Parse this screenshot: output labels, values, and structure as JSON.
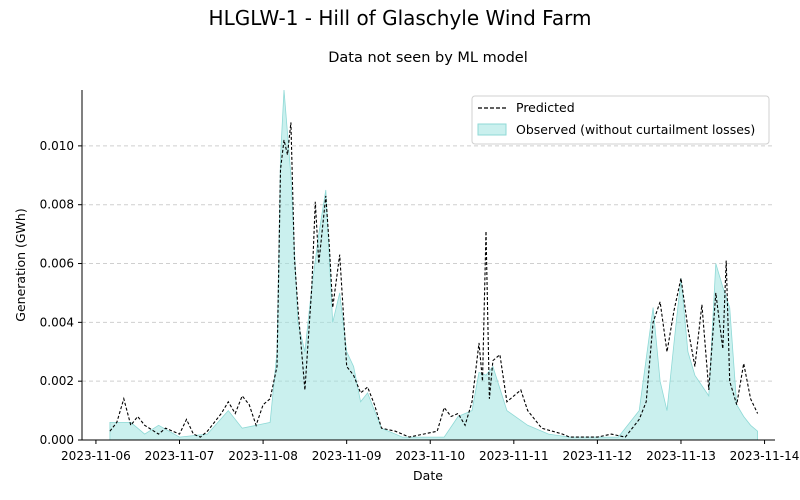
{
  "chart_data": {
    "type": "line",
    "title": "HLGLW-1 - Hill of Glaschyle Wind Farm",
    "subtitle": "Data not seen by ML model",
    "xlabel": "Date",
    "ylabel": "Generation (GWh)",
    "xlim": [
      "2023-11-05 20:00",
      "2023-11-14 03:00"
    ],
    "ylim": [
      0,
      0.0119
    ],
    "x_ticks": [
      "2023-11-06",
      "2023-11-07",
      "2023-11-08",
      "2023-11-09",
      "2023-11-10",
      "2023-11-11",
      "2023-11-12",
      "2023-11-13",
      "2023-11-14"
    ],
    "y_ticks": [
      0.0,
      0.002,
      0.004,
      0.006,
      0.008,
      0.01
    ],
    "y_tick_labels": [
      "0.000",
      "0.002",
      "0.004",
      "0.006",
      "0.008",
      "0.010"
    ],
    "grid": "y",
    "legend": "top-right",
    "series": [
      {
        "name": "Predicted",
        "type": "line",
        "style": "dashed",
        "color": "#000000",
        "points": [
          [
            "2023-11-06 04:00",
            0.0003
          ],
          [
            "2023-11-06 06:00",
            0.0006
          ],
          [
            "2023-11-06 08:00",
            0.0014
          ],
          [
            "2023-11-06 10:00",
            0.0005
          ],
          [
            "2023-11-06 12:00",
            0.0008
          ],
          [
            "2023-11-06 14:00",
            0.0005
          ],
          [
            "2023-11-06 18:00",
            0.0002
          ],
          [
            "2023-11-06 20:00",
            0.0004
          ],
          [
            "2023-11-07 00:00",
            0.0002
          ],
          [
            "2023-11-07 02:00",
            0.0007
          ],
          [
            "2023-11-07 04:00",
            0.0002
          ],
          [
            "2023-11-07 06:00",
            0.0001
          ],
          [
            "2023-11-07 08:00",
            0.0003
          ],
          [
            "2023-11-07 12:00",
            0.0009
          ],
          [
            "2023-11-07 14:00",
            0.0013
          ],
          [
            "2023-11-07 16:00",
            0.0009
          ],
          [
            "2023-11-07 18:00",
            0.0015
          ],
          [
            "2023-11-07 20:00",
            0.0012
          ],
          [
            "2023-11-07 22:00",
            0.0005
          ],
          [
            "2023-11-08 00:00",
            0.0012
          ],
          [
            "2023-11-08 02:00",
            0.0014
          ],
          [
            "2023-11-08 04:00",
            0.0025
          ],
          [
            "2023-11-08 05:00",
            0.0092
          ],
          [
            "2023-11-08 06:00",
            0.0102
          ],
          [
            "2023-11-08 07:00",
            0.0097
          ],
          [
            "2023-11-08 08:00",
            0.0108
          ],
          [
            "2023-11-08 09:00",
            0.0062
          ],
          [
            "2023-11-08 10:00",
            0.0045
          ],
          [
            "2023-11-08 12:00",
            0.0017
          ],
          [
            "2023-11-08 14:00",
            0.0052
          ],
          [
            "2023-11-08 15:00",
            0.0081
          ],
          [
            "2023-11-08 16:00",
            0.006
          ],
          [
            "2023-11-08 18:00",
            0.0083
          ],
          [
            "2023-11-08 19:00",
            0.0066
          ],
          [
            "2023-11-08 20:00",
            0.0045
          ],
          [
            "2023-11-08 22:00",
            0.0063
          ],
          [
            "2023-11-09 00:00",
            0.0025
          ],
          [
            "2023-11-09 02:00",
            0.0022
          ],
          [
            "2023-11-09 04:00",
            0.0016
          ],
          [
            "2023-11-09 06:00",
            0.0018
          ],
          [
            "2023-11-09 08:00",
            0.0012
          ],
          [
            "2023-11-09 10:00",
            0.0004
          ],
          [
            "2023-11-09 14:00",
            0.0003
          ],
          [
            "2023-11-09 18:00",
            0.0001
          ],
          [
            "2023-11-10 02:00",
            0.0003
          ],
          [
            "2023-11-10 04:00",
            0.0011
          ],
          [
            "2023-11-10 06:00",
            0.0008
          ],
          [
            "2023-11-10 08:00",
            0.0009
          ],
          [
            "2023-11-10 10:00",
            0.0005
          ],
          [
            "2023-11-10 12:00",
            0.0013
          ],
          [
            "2023-11-10 14:00",
            0.0033
          ],
          [
            "2023-11-10 15:00",
            0.002
          ],
          [
            "2023-11-10 16:00",
            0.0071
          ],
          [
            "2023-11-10 17:00",
            0.0014
          ],
          [
            "2023-11-10 18:00",
            0.0027
          ],
          [
            "2023-11-10 20:00",
            0.0029
          ],
          [
            "2023-11-10 22:00",
            0.0013
          ],
          [
            "2023-11-11 02:00",
            0.0017
          ],
          [
            "2023-11-11 04:00",
            0.001
          ],
          [
            "2023-11-11 08:00",
            0.0004
          ],
          [
            "2023-11-11 14:00",
            0.0002
          ],
          [
            "2023-11-11 16:00",
            0.0001
          ],
          [
            "2023-11-12 00:00",
            0.0001
          ],
          [
            "2023-11-12 04:00",
            0.0002
          ],
          [
            "2023-11-12 08:00",
            0.0001
          ],
          [
            "2023-11-12 12:00",
            0.0007
          ],
          [
            "2023-11-12 14:00",
            0.0013
          ],
          [
            "2023-11-12 16:00",
            0.004
          ],
          [
            "2023-11-12 18:00",
            0.0047
          ],
          [
            "2023-11-12 20:00",
            0.003
          ],
          [
            "2023-11-12 22:00",
            0.0044
          ],
          [
            "2023-11-13 00:00",
            0.0055
          ],
          [
            "2023-11-13 02:00",
            0.0038
          ],
          [
            "2023-11-13 04:00",
            0.0025
          ],
          [
            "2023-11-13 06:00",
            0.0046
          ],
          [
            "2023-11-13 08:00",
            0.0017
          ],
          [
            "2023-11-13 10:00",
            0.005
          ],
          [
            "2023-11-13 12:00",
            0.0031
          ],
          [
            "2023-11-13 13:00",
            0.0061
          ],
          [
            "2023-11-13 14:00",
            0.002
          ],
          [
            "2023-11-13 16:00",
            0.0012
          ],
          [
            "2023-11-13 18:00",
            0.0026
          ],
          [
            "2023-11-13 20:00",
            0.0014
          ],
          [
            "2023-11-13 22:00",
            0.0009
          ]
        ]
      },
      {
        "name": "Observed (without curtailment losses)",
        "type": "area",
        "color": "#9fe3e0",
        "points": [
          [
            "2023-11-06 04:00",
            0.0006
          ],
          [
            "2023-11-06 10:00",
            0.0006
          ],
          [
            "2023-11-06 14:00",
            0.0002
          ],
          [
            "2023-11-06 18:00",
            0.0005
          ],
          [
            "2023-11-07 00:00",
            0.0001
          ],
          [
            "2023-11-07 08:00",
            0.0002
          ],
          [
            "2023-11-07 14:00",
            0.001
          ],
          [
            "2023-11-07 18:00",
            0.0004
          ],
          [
            "2023-11-08 02:00",
            0.0006
          ],
          [
            "2023-11-08 04:00",
            0.003
          ],
          [
            "2023-11-08 05:00",
            0.0096
          ],
          [
            "2023-11-08 06:00",
            0.0119
          ],
          [
            "2023-11-08 08:00",
            0.009
          ],
          [
            "2023-11-08 10:00",
            0.004
          ],
          [
            "2023-11-08 12:00",
            0.003
          ],
          [
            "2023-11-08 14:00",
            0.0052
          ],
          [
            "2023-11-08 16:00",
            0.007
          ],
          [
            "2023-11-08 18:00",
            0.0085
          ],
          [
            "2023-11-08 20:00",
            0.004
          ],
          [
            "2023-11-08 22:00",
            0.005
          ],
          [
            "2023-11-09 00:00",
            0.003
          ],
          [
            "2023-11-09 02:00",
            0.0025
          ],
          [
            "2023-11-09 04:00",
            0.0013
          ],
          [
            "2023-11-09 06:00",
            0.0016
          ],
          [
            "2023-11-09 08:00",
            0.001
          ],
          [
            "2023-11-09 10:00",
            0.0004
          ],
          [
            "2023-11-09 16:00",
            0.0001
          ],
          [
            "2023-11-10 04:00",
            0.0001
          ],
          [
            "2023-11-10 08:00",
            0.0008
          ],
          [
            "2023-11-10 12:00",
            0.001
          ],
          [
            "2023-11-10 14:00",
            0.0023
          ],
          [
            "2023-11-10 16:00",
            0.0022
          ],
          [
            "2023-11-10 18:00",
            0.0025
          ],
          [
            "2023-11-10 22:00",
            0.001
          ],
          [
            "2023-11-11 04:00",
            0.0005
          ],
          [
            "2023-11-11 10:00",
            0.0002
          ],
          [
            "2023-11-11 16:00",
            0.0001
          ],
          [
            "2023-11-12 06:00",
            0.0001
          ],
          [
            "2023-11-12 12:00",
            0.001
          ],
          [
            "2023-11-12 16:00",
            0.0045
          ],
          [
            "2023-11-12 18:00",
            0.002
          ],
          [
            "2023-11-12 20:00",
            0.001
          ],
          [
            "2023-11-12 22:00",
            0.0033
          ],
          [
            "2023-11-13 00:00",
            0.0055
          ],
          [
            "2023-11-13 02:00",
            0.003
          ],
          [
            "2023-11-13 04:00",
            0.0022
          ],
          [
            "2023-11-13 08:00",
            0.0015
          ],
          [
            "2023-11-13 10:00",
            0.006
          ],
          [
            "2023-11-13 12:00",
            0.0052
          ],
          [
            "2023-11-13 14:00",
            0.0045
          ],
          [
            "2023-11-13 16:00",
            0.0012
          ],
          [
            "2023-11-13 18:00",
            0.0008
          ],
          [
            "2023-11-13 20:00",
            0.0005
          ],
          [
            "2023-11-13 22:00",
            0.0003
          ]
        ]
      }
    ]
  }
}
